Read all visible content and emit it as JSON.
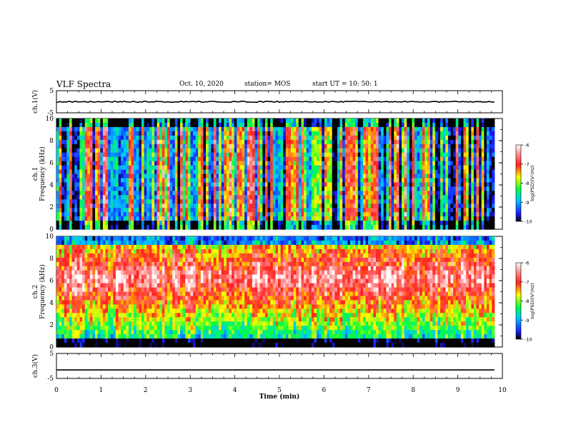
{
  "header": {
    "title": "VLF Spectra",
    "date": "Oct. 10, 2020",
    "station": "station= MOS",
    "start": "start  UT =   10: 50: 1"
  },
  "chart_data": [
    {
      "type": "line",
      "panel": "ch1-voltage",
      "ylabel": "ch.1(V)",
      "ylim": [
        -5,
        5
      ],
      "yticks": [
        "5",
        "-5"
      ],
      "xlim": [
        0,
        10
      ],
      "x": [
        0,
        9.82
      ],
      "y": [
        0,
        0
      ]
    },
    {
      "type": "heatmap",
      "panel": "ch1-spectrogram",
      "ylabel": "ch.1\nFrequency  (kHz)",
      "ylim": [
        0,
        10
      ],
      "yticks": [
        "0",
        "2",
        "4",
        "6",
        "8",
        "10"
      ],
      "xlim": [
        0,
        9.82
      ],
      "colorbar": {
        "label": "log(PSD)(V²/Hz)",
        "range": [
          -10,
          -6
        ],
        "ticks": [
          "-6",
          "-7",
          "-8",
          "-9",
          "-10"
        ]
      }
    },
    {
      "type": "heatmap",
      "panel": "ch2-spectrogram",
      "ylabel": "ch.2\nFrequency  (kHz)",
      "ylim": [
        0,
        10
      ],
      "yticks": [
        "0",
        "2",
        "4",
        "6",
        "8",
        "10"
      ],
      "xlim": [
        0,
        9.82
      ],
      "colorbar": {
        "label": "log(PSD)(V²/Hz)",
        "range": [
          -10,
          -6
        ],
        "ticks": [
          "-6",
          "-7",
          "-8",
          "-9",
          "-10"
        ]
      }
    },
    {
      "type": "line",
      "panel": "ch3-voltage",
      "ylabel": "ch.3(V)",
      "ylim": [
        -5,
        5
      ],
      "yticks": [
        "5",
        "-5"
      ],
      "xlim": [
        0,
        10
      ],
      "x": [
        0,
        9.82
      ],
      "y": [
        -1.6,
        -1.6
      ]
    }
  ],
  "xaxis": {
    "label": "Time  (min)",
    "ticks": [
      "0",
      "1",
      "2",
      "3",
      "4",
      "5",
      "6",
      "7",
      "8",
      "9",
      "10"
    ],
    "range": [
      0,
      10
    ]
  }
}
